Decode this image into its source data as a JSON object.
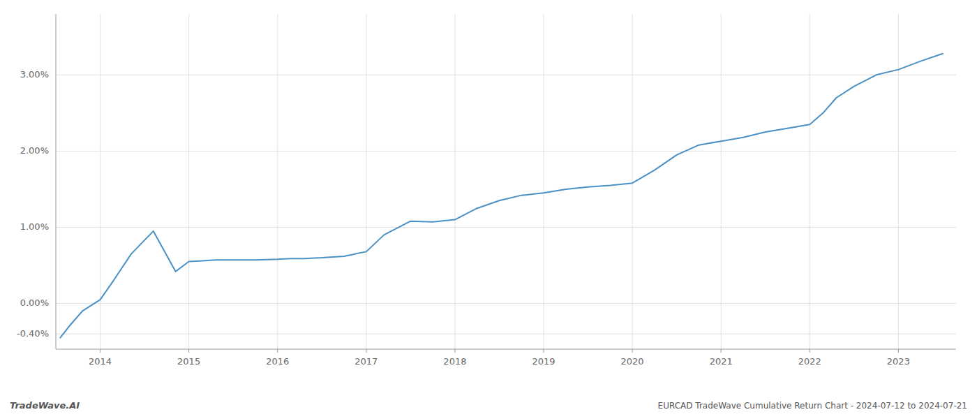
{
  "chart_data": {
    "type": "line",
    "title": "EURCAD TradeWave Cumulative Return Chart - 2024-07-12 to 2024-07-21",
    "annotations": [
      "TradeWave.AI"
    ],
    "color": "#4a90c4",
    "grid": true,
    "xlim": [
      2013.5,
      2023.65
    ],
    "ylim": [
      -0.006,
      0.038
    ],
    "xticks": [
      2014,
      2015,
      2016,
      2017,
      2018,
      2019,
      2020,
      2021,
      2022,
      2023
    ],
    "yticks": [
      {
        "value": -0.004,
        "label": "-0.40%"
      },
      {
        "value": 0.0,
        "label": "0.00%"
      },
      {
        "value": 0.01,
        "label": "1.00%"
      },
      {
        "value": 0.02,
        "label": "2.00%"
      },
      {
        "value": 0.03,
        "label": "3.00%"
      }
    ],
    "x": [
      2013.55,
      2013.65,
      2013.8,
      2014.0,
      2014.15,
      2014.35,
      2014.6,
      2014.85,
      2015.0,
      2015.15,
      2015.3,
      2015.5,
      2015.75,
      2016.0,
      2016.15,
      2016.3,
      2016.5,
      2016.75,
      2017.0,
      2017.2,
      2017.5,
      2017.75,
      2018.0,
      2018.25,
      2018.5,
      2018.75,
      2019.0,
      2019.25,
      2019.5,
      2019.75,
      2020.0,
      2020.25,
      2020.5,
      2020.75,
      2021.0,
      2021.25,
      2021.5,
      2021.75,
      2022.0,
      2022.15,
      2022.3,
      2022.5,
      2022.75,
      2023.0,
      2023.25,
      2023.5
    ],
    "values": [
      -0.0045,
      -0.003,
      -0.001,
      0.0005,
      0.003,
      0.0065,
      0.0095,
      0.0042,
      0.0055,
      0.0056,
      0.0057,
      0.0057,
      0.0057,
      0.0058,
      0.0059,
      0.0059,
      0.006,
      0.0062,
      0.0068,
      0.009,
      0.0108,
      0.0107,
      0.011,
      0.0125,
      0.0135,
      0.0142,
      0.0145,
      0.015,
      0.0153,
      0.0155,
      0.0158,
      0.0175,
      0.0195,
      0.0208,
      0.0213,
      0.0218,
      0.0225,
      0.023,
      0.0235,
      0.025,
      0.027,
      0.0285,
      0.03,
      0.0307,
      0.0318,
      0.0328
    ]
  }
}
